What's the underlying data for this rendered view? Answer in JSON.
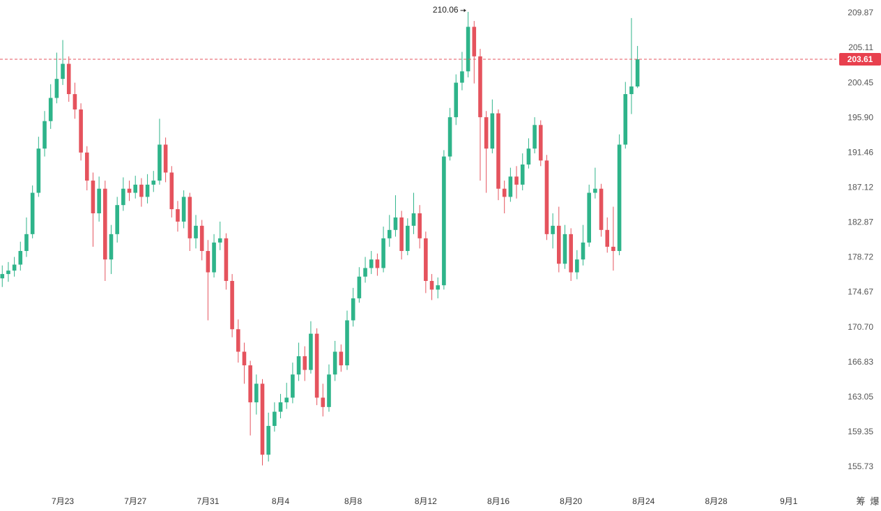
{
  "chart_data": {
    "type": "candlestick",
    "x": [
      16,
      24,
      32,
      40,
      48,
      56,
      64,
      72,
      80,
      88,
      96,
      104,
      112,
      120,
      128,
      136,
      144,
      152,
      160,
      168,
      176,
      184,
      192,
      200,
      208,
      216,
      224,
      232,
      240,
      248,
      256,
      264,
      272,
      280,
      288,
      296,
      304,
      312,
      320,
      328,
      336,
      344,
      352,
      360,
      368,
      376,
      384,
      392,
      400,
      408,
      416,
      424,
      432,
      440,
      448,
      456,
      464,
      472,
      480,
      488,
      496,
      504,
      512,
      520,
      528,
      536,
      544,
      552,
      560,
      568,
      576,
      584,
      592,
      600,
      608,
      616,
      624,
      632,
      640,
      648,
      656,
      664,
      672,
      680,
      688,
      696,
      704,
      712,
      720,
      728,
      736,
      744,
      752,
      760,
      768,
      776,
      784,
      792,
      800,
      808,
      816,
      824,
      832,
      840,
      848,
      856
    ],
    "open": [
      176.3,
      176.8,
      177.2,
      177.9,
      179.5,
      181.5,
      186.5,
      192,
      195.5,
      198.5,
      201,
      203,
      199,
      197,
      191.5,
      188,
      184,
      187,
      178.5,
      181.5,
      185,
      187,
      186.5,
      187.5,
      186,
      187.5,
      188,
      192.5,
      189,
      184.5,
      183,
      186,
      181,
      182.5,
      179.5,
      177,
      180.5,
      181,
      176,
      170.5,
      168,
      166.5,
      162.5,
      164.5,
      157,
      160,
      161.5,
      162.5,
      163,
      165.5,
      167.5,
      166,
      170,
      163,
      162,
      165.5,
      168,
      166.5,
      171.5,
      174,
      176.5,
      177.5,
      178.5,
      177.5,
      181,
      182,
      183.5,
      179.5,
      182.5,
      184,
      181,
      176,
      175,
      175.5,
      191,
      196,
      200.5,
      202,
      208,
      204,
      196,
      192,
      196.5,
      187,
      186,
      188.5,
      187.5,
      190,
      192,
      195,
      190.5,
      181.5,
      182.5,
      178,
      181.5,
      177,
      178.5,
      180.5,
      186.5,
      187,
      182,
      180,
      179.5,
      192.5,
      199,
      200
    ],
    "high": [
      177.8,
      178.2,
      178.8,
      180.6,
      183.5,
      187.4,
      193.5,
      196.8,
      200.3,
      204.5,
      206.2,
      204,
      200.5,
      197.8,
      192.3,
      189,
      188.5,
      188,
      182.6,
      186,
      188.4,
      188,
      188.6,
      188.3,
      188.8,
      189.2,
      195.8,
      193.4,
      189.8,
      185.5,
      186.8,
      186.5,
      183.8,
      183.2,
      180.8,
      181.5,
      183,
      181.6,
      176.8,
      171.6,
      169,
      167,
      165.5,
      165,
      161.4,
      162.5,
      163.4,
      164.6,
      166.8,
      169,
      168.6,
      171.4,
      170.6,
      164.5,
      166.6,
      169.2,
      168.8,
      172.6,
      175.2,
      177.6,
      178.8,
      179.5,
      179.2,
      182.4,
      183.8,
      186.2,
      184.3,
      183.4,
      186.5,
      185,
      181.8,
      176.8,
      176.4,
      191.8,
      197.2,
      201.6,
      204.6,
      210.06,
      208.8,
      205,
      196.8,
      198.3,
      197,
      188,
      189.6,
      189.8,
      191.4,
      193.3,
      196,
      195.6,
      191.2,
      184,
      184.8,
      182.6,
      182.2,
      179.6,
      182.6,
      187.5,
      189.6,
      187.6,
      183.5,
      184.8,
      193.8,
      200.6,
      209.2,
      205.4
    ],
    "low": [
      175.3,
      175.9,
      176.5,
      177.2,
      178.8,
      181,
      186,
      191,
      194.5,
      197.8,
      200.2,
      198,
      195.8,
      190.5,
      186.8,
      180,
      183,
      176,
      176.8,
      180.5,
      184.3,
      185.5,
      185.8,
      184.8,
      185.2,
      186.6,
      187.5,
      187.8,
      183.5,
      181.8,
      182.2,
      179.5,
      179.8,
      178.4,
      171.5,
      176.4,
      179.6,
      175,
      169.6,
      166.8,
      164.5,
      159,
      161.2,
      155.9,
      156.3,
      159.4,
      160.8,
      161.8,
      162.4,
      164.8,
      164.8,
      165.6,
      162.2,
      161,
      161.5,
      164.8,
      165.8,
      166,
      170.8,
      173.5,
      175.8,
      176.8,
      176.6,
      177,
      180,
      181.2,
      178.5,
      179,
      181.5,
      179.8,
      174.6,
      173.8,
      174,
      175,
      190.5,
      195,
      199.5,
      201.2,
      200.4,
      188,
      186.5,
      191.4,
      185.6,
      184,
      185.4,
      185.8,
      186.8,
      189.5,
      191.4,
      189.8,
      180.8,
      179.8,
      177,
      177.4,
      176,
      176.2,
      177.8,
      180,
      185.8,
      181.2,
      179.3,
      177.2,
      179,
      192,
      196.4,
      199.8
    ],
    "close": [
      176.8,
      177.2,
      177.9,
      179.5,
      181.5,
      186.5,
      192,
      195.5,
      198.5,
      201,
      203,
      199,
      197,
      191.5,
      188,
      184,
      187,
      178.5,
      181.5,
      185,
      187,
      186.5,
      187.5,
      186,
      187.5,
      188,
      192.5,
      189,
      184.5,
      183,
      186,
      181,
      182.5,
      179.5,
      177,
      180.5,
      181,
      176,
      170.5,
      168,
      166.5,
      162.5,
      164.5,
      157,
      160,
      161.5,
      162.5,
      163,
      165.5,
      167.5,
      166,
      170,
      163,
      162,
      165.5,
      168,
      166.5,
      171.5,
      174,
      176.5,
      177.5,
      178.5,
      177.5,
      181,
      182,
      183.5,
      179.5,
      182.5,
      184,
      181,
      176,
      175,
      175.5,
      191,
      196,
      200.5,
      202,
      208,
      204,
      196,
      192,
      196.5,
      187,
      186,
      188.5,
      187.5,
      190,
      192,
      195,
      190.5,
      181.5,
      182.5,
      178,
      181.5,
      177,
      178.5,
      180.5,
      186.5,
      187,
      182,
      180,
      179.5,
      192.5,
      199,
      200,
      203.61
    ],
    "up_color": "#2eb48a",
    "down_color": "#e5535d",
    "xlim": [
      13,
      1119
    ],
    "xticks": [
      {
        "value": 96,
        "label": "7月23"
      },
      {
        "value": 192,
        "label": "7月27"
      },
      {
        "value": 288,
        "label": "7月31"
      },
      {
        "value": 384,
        "label": "8月4"
      },
      {
        "value": 480,
        "label": "8月8"
      },
      {
        "value": 576,
        "label": "8月12"
      },
      {
        "value": 672,
        "label": "8月16"
      },
      {
        "value": 768,
        "label": "8月20"
      },
      {
        "value": 864,
        "label": "8月24"
      },
      {
        "value": 960,
        "label": "8月28"
      },
      {
        "value": 1056,
        "label": "9月1"
      }
    ],
    "ylim": [
      153.25,
      211.7
    ],
    "log_y": true,
    "yticks": [
      209.87,
      205.11,
      200.45,
      {
        "value": 195.9,
        "label": "195.90"
      },
      191.46,
      187.12,
      182.87,
      178.72,
      174.67,
      {
        "value": 170.7,
        "label": "170.70"
      },
      166.83,
      163.05,
      159.35,
      155.73
    ],
    "toolbar": [
      "筹",
      "爆"
    ]
  }
}
